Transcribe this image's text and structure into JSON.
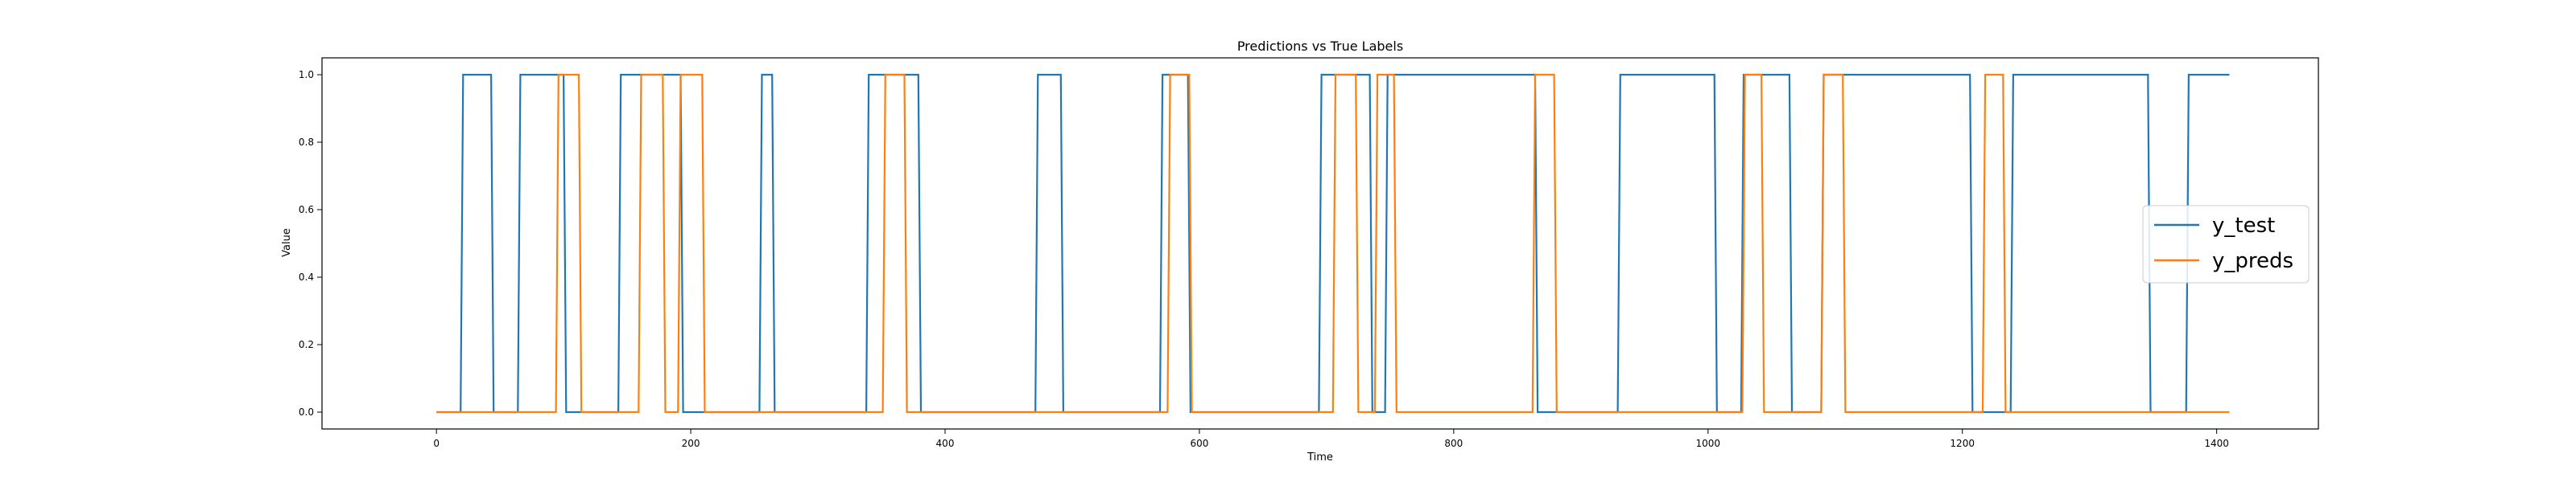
{
  "chart_data": {
    "type": "line",
    "title": "Predictions vs True Labels",
    "xlabel": "Time",
    "ylabel": "Value",
    "xlim": [
      -90,
      1480
    ],
    "ylim": [
      -0.05,
      1.05
    ],
    "xticks": [
      0,
      200,
      400,
      600,
      800,
      1000,
      1200,
      1400
    ],
    "yticks": [
      0.0,
      0.2,
      0.4,
      0.6,
      0.8,
      1.0
    ],
    "xtick_labels": [
      "0",
      "200",
      "400",
      "600",
      "800",
      "1000",
      "1200",
      "1400"
    ],
    "ytick_labels": [
      "0.0",
      "0.2",
      "0.4",
      "0.6",
      "0.8",
      "1.0"
    ],
    "grid": false,
    "legend_position": "center-right",
    "series": [
      {
        "name": "y_test",
        "color": "#1f77b4",
        "x": [
          0,
          19,
          21,
          43,
          45,
          64,
          66,
          100,
          102,
          143,
          145,
          192,
          194,
          254,
          256,
          264,
          266,
          338,
          340,
          379,
          381,
          471,
          473,
          491,
          493,
          569,
          571,
          591,
          593,
          694,
          696,
          734,
          736,
          746,
          748,
          864,
          866,
          929,
          931,
          1005,
          1007,
          1026,
          1028,
          1064,
          1066,
          1089,
          1091,
          1206,
          1208,
          1238,
          1240,
          1346,
          1348,
          1376,
          1378,
          1410
        ],
        "y": [
          0,
          0,
          1,
          1,
          0,
          0,
          1,
          1,
          0,
          0,
          1,
          1,
          0,
          0,
          1,
          1,
          0,
          0,
          1,
          1,
          0,
          0,
          1,
          1,
          0,
          0,
          1,
          1,
          0,
          0,
          1,
          1,
          0,
          0,
          1,
          1,
          0,
          0,
          1,
          1,
          0,
          0,
          1,
          1,
          0,
          0,
          1,
          1,
          0,
          0,
          1,
          1,
          0,
          0,
          1,
          1
        ]
      },
      {
        "name": "y_preds",
        "color": "#ff7f0e",
        "x": [
          0,
          94,
          96,
          112,
          114,
          159,
          161,
          178,
          180,
          190,
          192,
          209,
          211,
          351,
          353,
          368,
          370,
          575,
          577,
          592,
          594,
          705,
          707,
          723,
          725,
          738,
          740,
          753,
          755,
          862,
          864,
          879,
          881,
          1027,
          1029,
          1042,
          1044,
          1089,
          1091,
          1106,
          1108,
          1216,
          1218,
          1232,
          1234,
          1410
        ],
        "y": [
          0,
          0,
          1,
          1,
          0,
          0,
          1,
          1,
          0,
          0,
          1,
          1,
          0,
          0,
          1,
          1,
          0,
          0,
          1,
          1,
          0,
          0,
          1,
          1,
          0,
          0,
          1,
          1,
          0,
          0,
          1,
          1,
          0,
          0,
          1,
          1,
          0,
          0,
          1,
          1,
          0,
          0,
          1,
          1,
          0,
          0
        ]
      }
    ]
  }
}
